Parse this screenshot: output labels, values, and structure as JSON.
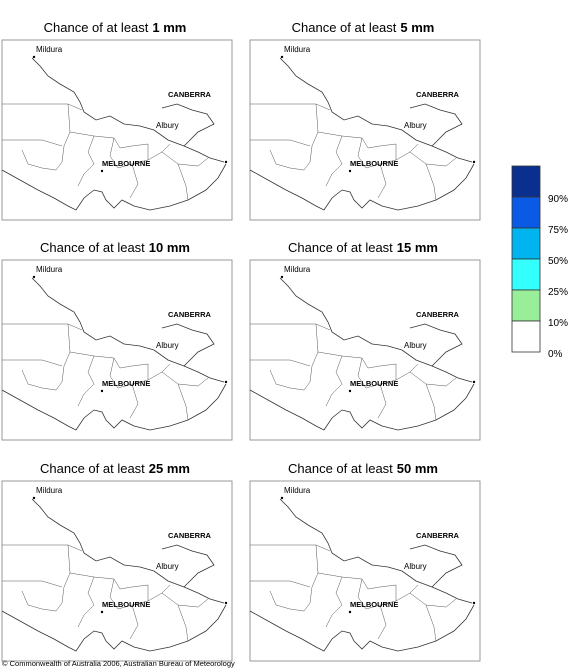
{
  "panels": [
    {
      "prefix": "Chance of at least",
      "threshold": "1 mm"
    },
    {
      "prefix": "Chance of at least",
      "threshold": "5 mm"
    },
    {
      "prefix": "Chance of at least",
      "threshold": "10 mm"
    },
    {
      "prefix": "Chance of at least",
      "threshold": "15 mm"
    },
    {
      "prefix": "Chance of at least",
      "threshold": "25 mm"
    },
    {
      "prefix": "Chance of at least",
      "threshold": "50 mm"
    }
  ],
  "places": {
    "mildura": "Mildura",
    "canberra": "CANBERRA",
    "albury": "Albury",
    "melbourne": "MELBOURNE"
  },
  "legend": {
    "labels": [
      "90%",
      "75%",
      "50%",
      "25%",
      "10%",
      "0%"
    ],
    "colors": [
      "#0a2f8f",
      "#0a5ae6",
      "#00b4f0",
      "#33ffff",
      "#99ee99",
      "#ffffff"
    ]
  },
  "copyright": "© Commonwealth of Australia 2006, Australian Bureau of Meteorology"
}
